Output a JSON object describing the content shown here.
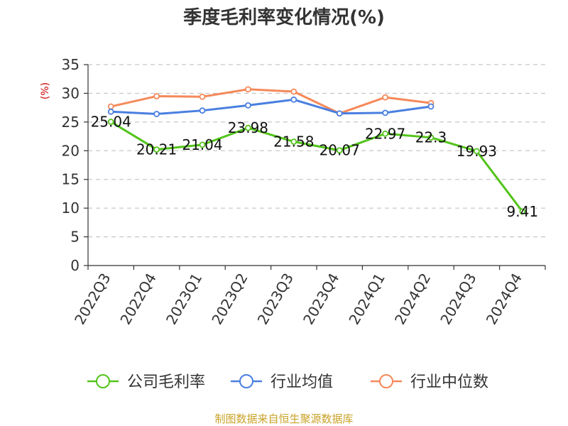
{
  "title": "季度毛利率变化情况(%)",
  "source_text": "制图数据来自恒生聚源数据库",
  "colors": {
    "company": "#52c41a",
    "industry_avg": "#4a7fe0",
    "industry_median": "#f5895a",
    "source": "#c9a227",
    "ylabel": "#cc0000"
  },
  "chart_data": {
    "type": "line",
    "title": "季度毛利率变化情况(%)",
    "ylabel": "(%)",
    "xlabel": "",
    "ylim": [
      0,
      35
    ],
    "yticks": [
      0,
      5,
      10,
      15,
      20,
      25,
      30,
      35
    ],
    "grid": true,
    "legend_position": "bottom",
    "categories": [
      "2022Q3",
      "2022Q4",
      "2023Q1",
      "2023Q2",
      "2023Q3",
      "2023Q4",
      "2024Q1",
      "2024Q2",
      "2024Q3",
      "2024Q4"
    ],
    "series": [
      {
        "name": "公司毛利率",
        "color": "#52c41a",
        "values": [
          25.04,
          20.21,
          21.04,
          23.98,
          21.58,
          20.07,
          22.97,
          22.3,
          19.93,
          9.41
        ],
        "labels": [
          "25.04",
          "20.21",
          "21.04",
          "23.98",
          "21.58",
          "20.07",
          "22.97",
          "22.3",
          "19.93",
          "9.41"
        ]
      },
      {
        "name": "行业均值",
        "color": "#4a7fe0",
        "values": [
          26.8,
          26.4,
          27.0,
          27.9,
          28.9,
          26.5,
          26.6,
          27.7,
          null,
          null
        ]
      },
      {
        "name": "行业中位数",
        "color": "#f5895a",
        "values": [
          27.7,
          29.5,
          29.4,
          30.7,
          30.3,
          26.5,
          29.3,
          28.3,
          null,
          null
        ]
      }
    ]
  }
}
